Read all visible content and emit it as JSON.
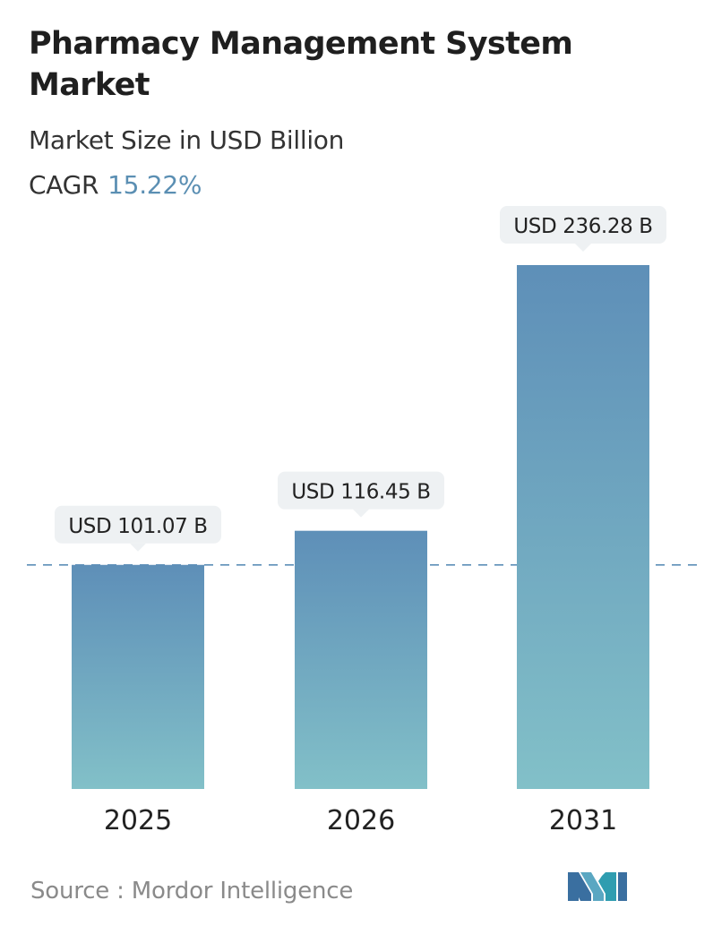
{
  "header": {
    "title": "Pharmacy Management System Market",
    "subtitle": "Market Size in USD Billion",
    "cagr_label": "CAGR",
    "cagr_value": "15.22%"
  },
  "chart_data": {
    "type": "bar",
    "categories": [
      "2025",
      "2026",
      "2031"
    ],
    "values": [
      101.07,
      116.45,
      236.28
    ],
    "value_labels": [
      "USD 101.07 B",
      "USD 116.45 B",
      "USD 236.28 B"
    ],
    "units": "USD Billion",
    "reference_line": 101.07,
    "grid": false,
    "colors": {
      "bar_top": "#5e8fb8",
      "bar_bottom": "#82c0c8",
      "label_bg": "#eef1f3",
      "dashed_line": "#5e8fb8"
    }
  },
  "footer": {
    "source": "Source :  Mordor Intelligence",
    "logo_icon": "mordor-intelligence-logo-icon"
  }
}
